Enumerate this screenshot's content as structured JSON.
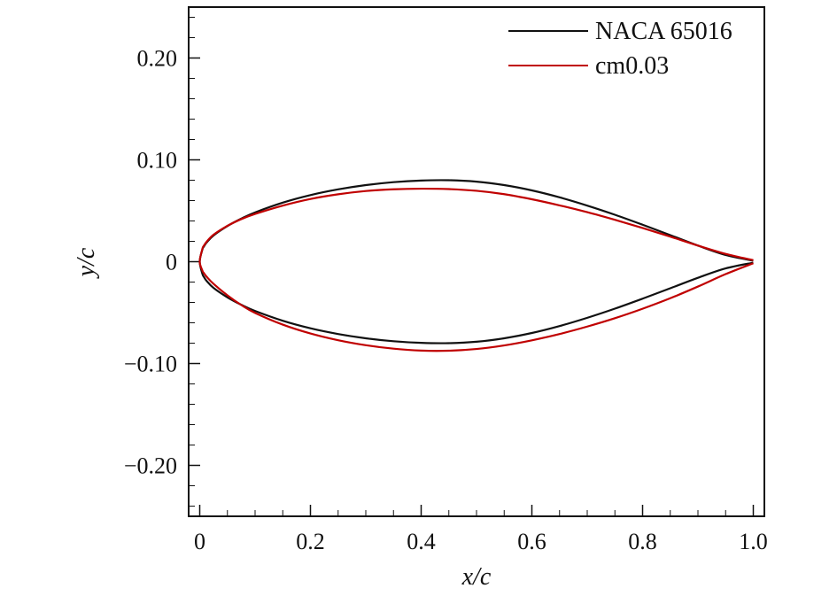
{
  "chart_data": {
    "type": "line",
    "title": "",
    "xlabel": "x/c",
    "ylabel": "y/c",
    "xlim": [
      -0.02,
      1.02
    ],
    "ylim": [
      -0.25,
      0.25
    ],
    "x_ticks": [
      {
        "value": 0,
        "label": "0"
      },
      {
        "value": 0.2,
        "label": "0.2"
      },
      {
        "value": 0.4,
        "label": "0.4"
      },
      {
        "value": 0.6,
        "label": "0.6"
      },
      {
        "value": 0.8,
        "label": "0.8"
      },
      {
        "value": 1.0,
        "label": "1.0"
      }
    ],
    "x_minor_step": 0.05,
    "y_ticks": [
      {
        "value": 0.2,
        "label": "0.20"
      },
      {
        "value": 0.1,
        "label": "0.10"
      },
      {
        "value": 0,
        "label": "0"
      },
      {
        "value": -0.1,
        "label": "−0.10"
      },
      {
        "value": -0.2,
        "label": "−0.20"
      }
    ],
    "y_minor_step": 0.02,
    "grid": false,
    "legend_position": "top-right",
    "series": [
      {
        "name": "NACA 65016",
        "color": "#111111",
        "upper": {
          "x": [
            0,
            0.005,
            0.0075,
            0.0125,
            0.025,
            0.05,
            0.075,
            0.1,
            0.15,
            0.2,
            0.25,
            0.3,
            0.35,
            0.4,
            0.45,
            0.5,
            0.55,
            0.6,
            0.65,
            0.7,
            0.75,
            0.8,
            0.85,
            0.9,
            0.95,
            1.0
          ],
          "y": [
            0,
            0.0123,
            0.0149,
            0.0189,
            0.0258,
            0.035,
            0.0423,
            0.0484,
            0.058,
            0.0654,
            0.071,
            0.0752,
            0.0781,
            0.0797,
            0.08,
            0.0786,
            0.0752,
            0.07,
            0.0632,
            0.0551,
            0.0461,
            0.0363,
            0.0261,
            0.0158,
            0.0066,
            0.001
          ]
        },
        "lower": {
          "x": [
            0,
            0.005,
            0.0075,
            0.0125,
            0.025,
            0.05,
            0.075,
            0.1,
            0.15,
            0.2,
            0.25,
            0.3,
            0.35,
            0.4,
            0.45,
            0.5,
            0.55,
            0.6,
            0.65,
            0.7,
            0.75,
            0.8,
            0.85,
            0.9,
            0.95,
            1.0
          ],
          "y": [
            0,
            -0.0123,
            -0.0149,
            -0.0189,
            -0.0258,
            -0.035,
            -0.0423,
            -0.0484,
            -0.058,
            -0.0654,
            -0.071,
            -0.0752,
            -0.0781,
            -0.0797,
            -0.08,
            -0.0786,
            -0.0752,
            -0.07,
            -0.0632,
            -0.0551,
            -0.0461,
            -0.0363,
            -0.0261,
            -0.0158,
            -0.0066,
            -0.001
          ]
        }
      },
      {
        "name": "cm0.03",
        "color": "#c00000",
        "upper": {
          "x": [
            0,
            0.005,
            0.0075,
            0.0125,
            0.025,
            0.05,
            0.075,
            0.1,
            0.15,
            0.2,
            0.25,
            0.3,
            0.35,
            0.4,
            0.45,
            0.5,
            0.55,
            0.6,
            0.65,
            0.7,
            0.75,
            0.8,
            0.85,
            0.9,
            0.95,
            1.0
          ],
          "y": [
            0,
            0.013,
            0.0157,
            0.0196,
            0.0265,
            0.0352,
            0.0418,
            0.0469,
            0.0551,
            0.0616,
            0.0662,
            0.0694,
            0.0711,
            0.0717,
            0.0713,
            0.0696,
            0.0663,
            0.0613,
            0.0553,
            0.0486,
            0.0411,
            0.0331,
            0.0246,
            0.0158,
            0.0077,
            0.0015
          ]
        },
        "lower": {
          "x": [
            0,
            0.005,
            0.0075,
            0.0125,
            0.025,
            0.05,
            0.075,
            0.1,
            0.15,
            0.2,
            0.25,
            0.3,
            0.35,
            0.4,
            0.45,
            0.5,
            0.55,
            0.6,
            0.65,
            0.7,
            0.75,
            0.8,
            0.85,
            0.9,
            0.95,
            1.0
          ],
          "y": [
            0,
            -0.009,
            -0.0112,
            -0.0148,
            -0.0218,
            -0.033,
            -0.0425,
            -0.0503,
            -0.0618,
            -0.0705,
            -0.0771,
            -0.082,
            -0.0854,
            -0.0873,
            -0.0874,
            -0.0857,
            -0.0822,
            -0.0772,
            -0.071,
            -0.0637,
            -0.0555,
            -0.0462,
            -0.0359,
            -0.0244,
            -0.0122,
            -0.0015
          ]
        }
      }
    ]
  }
}
